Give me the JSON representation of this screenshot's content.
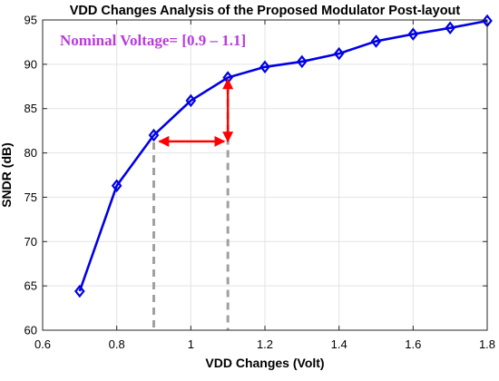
{
  "chart_data": {
    "type": "line",
    "title": "VDD Changes Analysis of the Proposed Modulator Post-layout",
    "xlabel": "VDD Changes (Volt)",
    "ylabel": "SNDR (dB)",
    "xlim": [
      0.6,
      1.8
    ],
    "ylim": [
      60,
      95
    ],
    "xticks": [
      "0.6",
      "0.8",
      "1",
      "1.2",
      "1.4",
      "1.6",
      "1.8"
    ],
    "yticks": [
      "60",
      "65",
      "70",
      "75",
      "80",
      "85",
      "90",
      "95"
    ],
    "grid": true,
    "series": [
      {
        "color": "#0000e6",
        "marker": "diamond",
        "x": [
          0.7,
          0.8,
          0.9,
          1.0,
          1.1,
          1.2,
          1.3,
          1.4,
          1.5,
          1.6,
          1.7,
          1.8
        ],
        "y": [
          64.4,
          76.3,
          82.0,
          85.9,
          88.5,
          89.7,
          90.3,
          91.2,
          92.6,
          93.4,
          94.1,
          94.9
        ]
      }
    ],
    "annotation": {
      "text": "Nominal Voltage= [0.9 – 1.1]",
      "color": "#b83bdb",
      "range_x": [
        0.9,
        1.1
      ],
      "arrow_y": 81.3,
      "vertical_arrow_x": 1.1,
      "vertical_arrow_y": [
        81.3,
        88.3
      ],
      "arrow_color": "#ff0000",
      "dashed_color": "#a0a0a0"
    }
  }
}
